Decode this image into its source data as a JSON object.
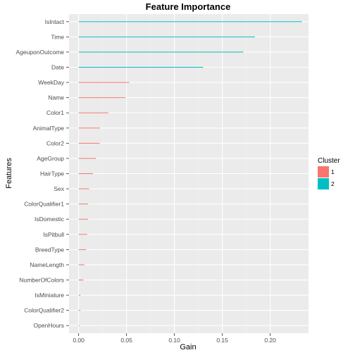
{
  "chart_data": {
    "type": "bar",
    "orientation": "horizontal",
    "title": "Feature Importance",
    "xlabel": "Gain",
    "ylabel": "Features",
    "xlim": [
      -0.01,
      0.24
    ],
    "xticks": [
      0.0,
      0.05,
      0.1,
      0.15,
      0.2
    ],
    "xtick_labels": [
      "0.00",
      "0.05",
      "0.10",
      "0.15",
      "0.20"
    ],
    "grid": true,
    "background": "#ebebeb",
    "legend": {
      "title": "Cluster",
      "position": "right",
      "entries": [
        {
          "label": "1",
          "color": "#F8766D"
        },
        {
          "label": "2",
          "color": "#00BFC4"
        }
      ]
    },
    "bars": [
      {
        "feature": "IsIntact",
        "gain": 0.233,
        "cluster": "2"
      },
      {
        "feature": "Time",
        "gain": 0.184,
        "cluster": "2"
      },
      {
        "feature": "AgeuponOutcome",
        "gain": 0.172,
        "cluster": "2"
      },
      {
        "feature": "Date",
        "gain": 0.13,
        "cluster": "2"
      },
      {
        "feature": "WeekDay",
        "gain": 0.053,
        "cluster": "1"
      },
      {
        "feature": "Name",
        "gain": 0.049,
        "cluster": "1"
      },
      {
        "feature": "Color1",
        "gain": 0.031,
        "cluster": "1"
      },
      {
        "feature": "AnimalType",
        "gain": 0.022,
        "cluster": "1"
      },
      {
        "feature": "Color2",
        "gain": 0.022,
        "cluster": "1"
      },
      {
        "feature": "AgeGroup",
        "gain": 0.018,
        "cluster": "1"
      },
      {
        "feature": "HairType",
        "gain": 0.015,
        "cluster": "1"
      },
      {
        "feature": "Sex",
        "gain": 0.011,
        "cluster": "1"
      },
      {
        "feature": "ColorQualifier1",
        "gain": 0.01,
        "cluster": "1"
      },
      {
        "feature": "IsDomestic",
        "gain": 0.01,
        "cluster": "1"
      },
      {
        "feature": "IsPitbull",
        "gain": 0.009,
        "cluster": "1"
      },
      {
        "feature": "BreedType",
        "gain": 0.008,
        "cluster": "1"
      },
      {
        "feature": "NameLength",
        "gain": 0.006,
        "cluster": "1"
      },
      {
        "feature": "NumberOfColors",
        "gain": 0.005,
        "cluster": "1"
      },
      {
        "feature": "IsMiniature",
        "gain": 0.002,
        "cluster": "1"
      },
      {
        "feature": "ColorQualifier2",
        "gain": 0.002,
        "cluster": "1"
      },
      {
        "feature": "OpenHours",
        "gain": 0.001,
        "cluster": "1"
      }
    ]
  }
}
